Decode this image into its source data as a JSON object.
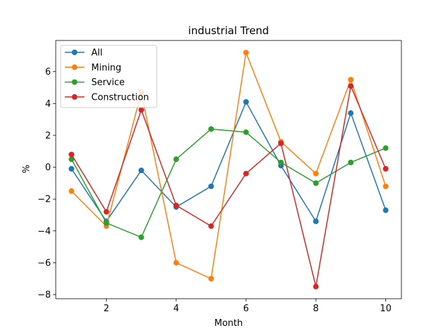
{
  "chart_data": {
    "type": "line",
    "title": "industrial Trend",
    "xlabel": "Month",
    "ylabel": "%",
    "x": [
      1,
      2,
      3,
      4,
      5,
      6,
      7,
      8,
      9,
      10
    ],
    "xlim": [
      0.55,
      10.45
    ],
    "ylim": [
      -8.26,
      7.96
    ],
    "xticks": [
      2,
      4,
      6,
      8,
      10
    ],
    "yticks": [
      -8,
      -6,
      -4,
      -2,
      0,
      2,
      4,
      6
    ],
    "grid": false,
    "legend_position": "top-left",
    "series": [
      {
        "name": "All",
        "color": "#1f77b4",
        "values": [
          -0.1,
          -3.4,
          -0.2,
          -2.5,
          -1.2,
          4.1,
          0.1,
          -3.4,
          3.4,
          -2.7
        ]
      },
      {
        "name": "Mining",
        "color": "#ff7f0e",
        "values": [
          -1.5,
          -3.7,
          4.7,
          -6.0,
          -7.0,
          7.2,
          1.6,
          -0.4,
          5.5,
          -1.2
        ]
      },
      {
        "name": "Service",
        "color": "#2ca02c",
        "values": [
          0.5,
          -3.5,
          -4.4,
          0.5,
          2.4,
          2.2,
          0.3,
          -1.0,
          0.3,
          1.2
        ]
      },
      {
        "name": "Construction",
        "color": "#d62728",
        "values": [
          0.8,
          -2.8,
          3.6,
          -2.4,
          -3.7,
          -0.4,
          1.5,
          -7.5,
          5.1,
          -0.1
        ]
      }
    ]
  }
}
